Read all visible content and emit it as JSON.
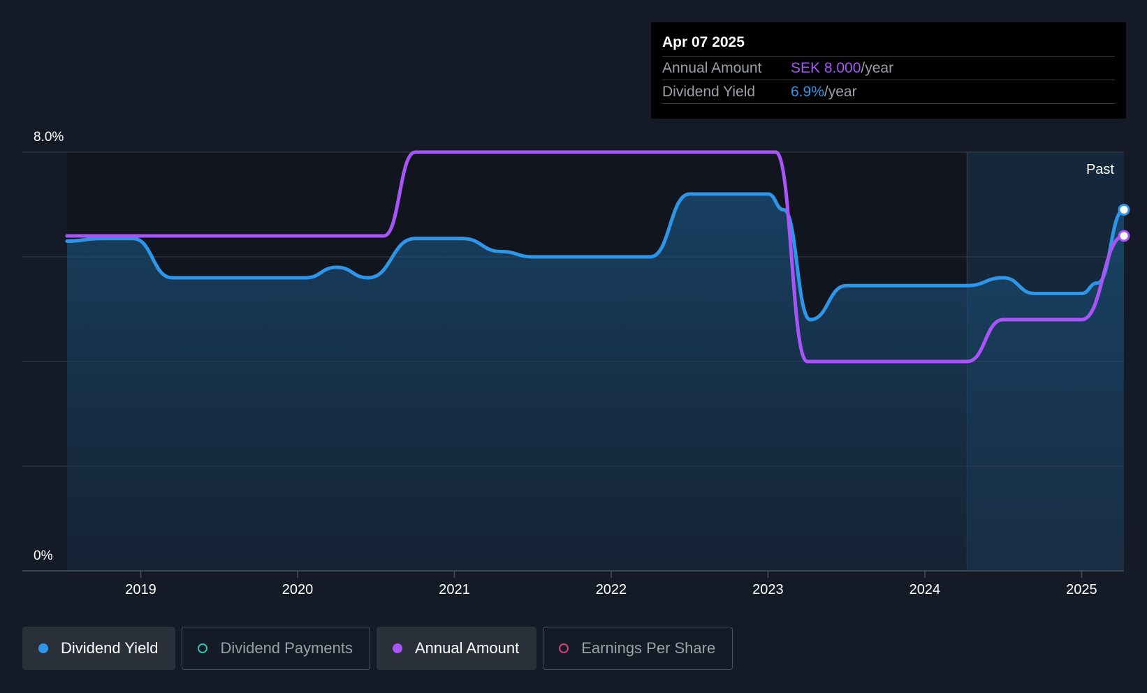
{
  "tooltip": {
    "date": "Apr 07 2025",
    "rows": [
      {
        "label": "Annual Amount",
        "value": "SEK 8.000",
        "suffix": "/year"
      },
      {
        "label": "Dividend Yield",
        "value": "6.9%",
        "suffix": "/year"
      }
    ]
  },
  "chart_data": {
    "type": "line",
    "y_tick_labels": {
      "top": "8.0%",
      "bottom": "0%"
    },
    "ylim": [
      0,
      8
    ],
    "xlim": [
      2018.53,
      2025.27
    ],
    "x_ticks": [
      2019,
      2020,
      2021,
      2022,
      2023,
      2024,
      2025
    ],
    "x_tick_labels": [
      "2019",
      "2020",
      "2021",
      "2022",
      "2023",
      "2024",
      "2025"
    ],
    "grid": true,
    "past_label": "Past",
    "past_start": 2024.27,
    "series": [
      {
        "name": "Dividend Yield",
        "color": "#2f95e6",
        "fill": true,
        "x": [
          2018.53,
          2018.75,
          2018.95,
          2019.2,
          2019.3,
          2020.05,
          2020.25,
          2020.45,
          2020.75,
          2021.05,
          2021.3,
          2021.5,
          2021.8,
          2022.25,
          2022.5,
          2022.6,
          2023.0,
          2023.1,
          2023.27,
          2023.5,
          2023.6,
          2024.27,
          2024.5,
          2024.7,
          2024.8,
          2025.0,
          2025.1,
          2025.27
        ],
        "y": [
          6.3,
          6.35,
          6.35,
          5.6,
          5.6,
          5.6,
          5.8,
          5.6,
          6.35,
          6.35,
          6.1,
          6.0,
          6.0,
          6.0,
          7.2,
          7.2,
          7.2,
          6.9,
          4.8,
          5.45,
          5.45,
          5.45,
          5.6,
          5.3,
          5.3,
          5.3,
          5.5,
          6.9
        ]
      },
      {
        "name": "Annual Amount",
        "color": "#a855f7",
        "fill": false,
        "x": [
          2018.53,
          2020.55,
          2020.75,
          2023.05,
          2023.25,
          2024.27,
          2024.5,
          2025.0,
          2025.27
        ],
        "y": [
          6.4,
          6.4,
          8.0,
          8.0,
          4.0,
          4.0,
          4.8,
          4.8,
          6.4
        ]
      }
    ]
  },
  "legend": [
    {
      "label": "Dividend Yield",
      "color": "#2f95e6",
      "active": true
    },
    {
      "label": "Dividend Payments",
      "color": "#35c2b4",
      "active": false
    },
    {
      "label": "Annual Amount",
      "color": "#a855f7",
      "active": true
    },
    {
      "label": "Earnings Per Share",
      "color": "#d0437c",
      "active": false
    }
  ]
}
